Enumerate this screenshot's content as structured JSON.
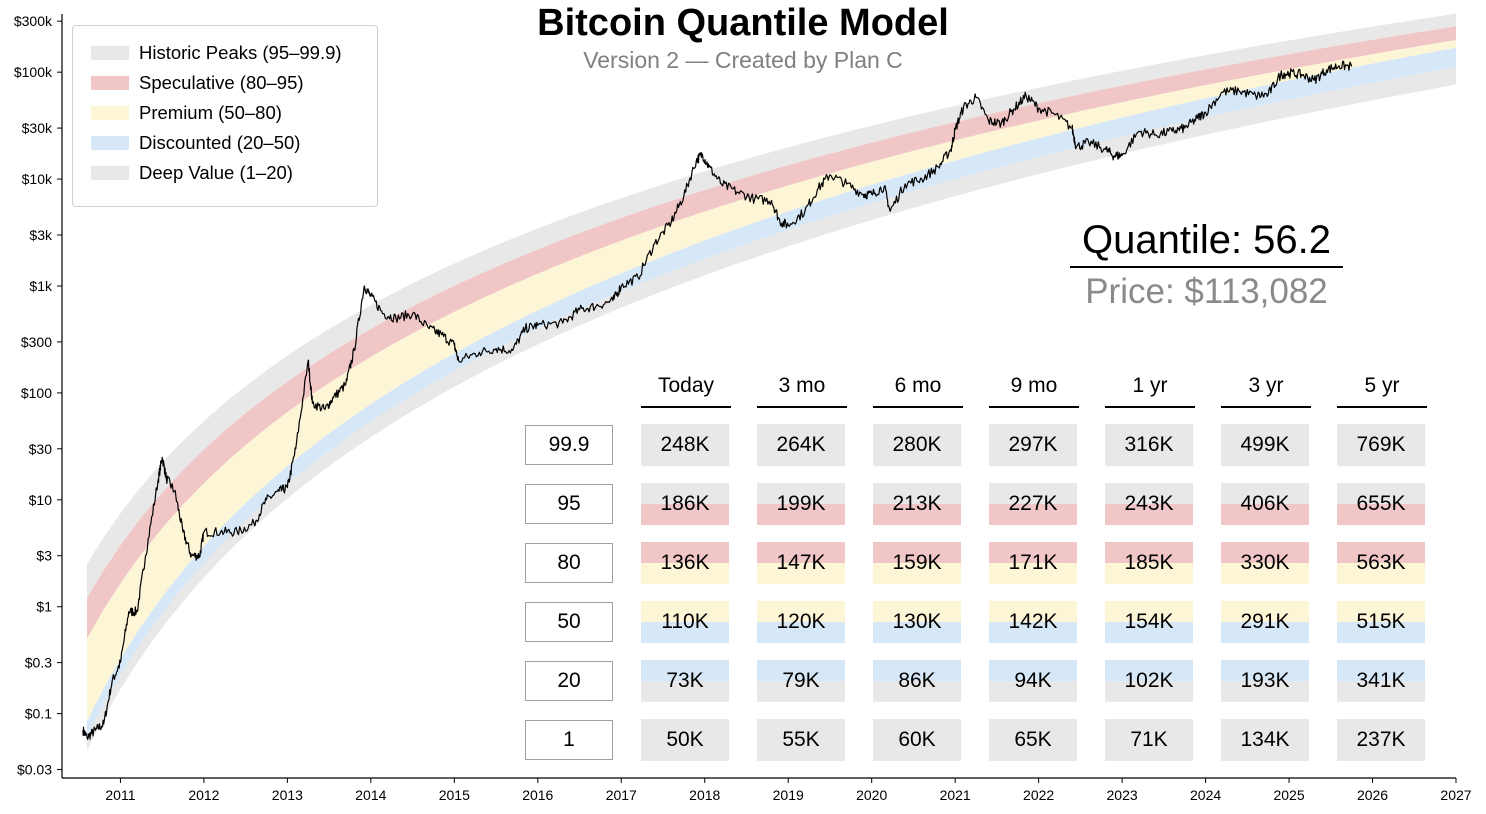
{
  "title": "Bitcoin Quantile Model",
  "subtitle": "Version 2 — Created by Plan C",
  "legend": [
    {
      "label": "Historic Peaks (95–99.9)",
      "color": "#e8e8e8"
    },
    {
      "label": "Speculative (80–95)",
      "color": "#f1c6c6"
    },
    {
      "label": "Premium (50–80)",
      "color": "#fdf6d6"
    },
    {
      "label": "Discounted (20–50)",
      "color": "#d6e7f7"
    },
    {
      "label": "Deep Value (1–20)",
      "color": "#e8e8e8"
    }
  ],
  "quantile_label": "Quantile: 56.2",
  "price_label": "Price: $113,082",
  "table": {
    "columns": [
      "Today",
      "3 mo",
      "6 mo",
      "9 mo",
      "1 yr",
      "3 yr",
      "5 yr"
    ],
    "rows": [
      {
        "quantile": "99.9",
        "values": [
          "248K",
          "264K",
          "280K",
          "297K",
          "316K",
          "499K",
          "769K"
        ]
      },
      {
        "quantile": "95",
        "values": [
          "186K",
          "199K",
          "213K",
          "227K",
          "243K",
          "406K",
          "655K"
        ]
      },
      {
        "quantile": "80",
        "values": [
          "136K",
          "147K",
          "159K",
          "171K",
          "185K",
          "330K",
          "563K"
        ]
      },
      {
        "quantile": "50",
        "values": [
          "110K",
          "120K",
          "130K",
          "142K",
          "154K",
          "291K",
          "515K"
        ]
      },
      {
        "quantile": "20",
        "values": [
          "73K",
          "79K",
          "86K",
          "94K",
          "102K",
          "193K",
          "341K"
        ]
      },
      {
        "quantile": "1",
        "values": [
          "50K",
          "55K",
          "60K",
          "65K",
          "71K",
          "134K",
          "237K"
        ]
      }
    ]
  },
  "colors": {
    "peaks": "#e8e8e8",
    "speculative": "#f1c6c6",
    "premium": "#fdf6d6",
    "discounted": "#d6e7f7",
    "deep": "#e8e8e8",
    "price_line": "#000000"
  },
  "chart_data": {
    "type": "line",
    "title": "Bitcoin Quantile Model",
    "subtitle": "Version 2 — Created by Plan C",
    "y_scale": "log",
    "y_ticks": [
      0.03,
      0.1,
      0.3,
      1,
      3,
      10,
      30,
      100,
      300,
      1000,
      3000,
      10000,
      30000,
      100000,
      300000
    ],
    "y_tick_labels": [
      "$0.03",
      "$0.1",
      "$0.3",
      "$1",
      "$3",
      "$10",
      "$30",
      "$100",
      "$300",
      "$1k",
      "$3k",
      "$10k",
      "$30k",
      "$100k",
      "$300k"
    ],
    "x_ticks": [
      2011,
      2012,
      2013,
      2014,
      2015,
      2016,
      2017,
      2018,
      2019,
      2020,
      2021,
      2022,
      2023,
      2024,
      2025,
      2026,
      2027
    ],
    "x_tick_labels": [
      "2011",
      "2012",
      "2013",
      "2014",
      "2015",
      "2016",
      "2017",
      "2018",
      "2019",
      "2020",
      "2021",
      "2022",
      "2023",
      "2024",
      "2025",
      "2026",
      "2027"
    ],
    "xlim": [
      2010.3,
      2027
    ],
    "ylim": [
      0.025,
      350000
    ],
    "band_start": 2010.6,
    "band_end": 2027,
    "bands": [
      {
        "name": "Historic Peaks (95–99.9)",
        "at": [
          {
            "x": 2010.6,
            "v": 2.5
          },
          {
            "x": 2025.75,
            "v": 248000
          }
        ]
      },
      {
        "name": "Quantile 95",
        "at": [
          {
            "x": 2010.6,
            "v": 1.2
          },
          {
            "x": 2025.75,
            "v": 186000
          }
        ]
      },
      {
        "name": "Quantile 80",
        "at": [
          {
            "x": 2010.6,
            "v": 0.5
          },
          {
            "x": 2025.75,
            "v": 136000
          }
        ]
      },
      {
        "name": "Quantile 50",
        "at": [
          {
            "x": 2010.6,
            "v": 0.085
          },
          {
            "x": 2025.75,
            "v": 110000
          }
        ]
      },
      {
        "name": "Quantile 20",
        "at": [
          {
            "x": 2010.6,
            "v": 0.06
          },
          {
            "x": 2025.75,
            "v": 73000
          }
        ]
      },
      {
        "name": "Quantile 1",
        "at": [
          {
            "x": 2010.6,
            "v": 0.045
          },
          {
            "x": 2025.75,
            "v": 50000
          }
        ]
      }
    ],
    "price_series": {
      "x": [
        2010.55,
        2010.6,
        2010.7,
        2010.8,
        2010.9,
        2011.0,
        2011.1,
        2011.2,
        2011.3,
        2011.45,
        2011.5,
        2011.55,
        2011.65,
        2011.75,
        2011.85,
        2011.95,
        2012.0,
        2012.2,
        2012.4,
        2012.6,
        2012.75,
        2012.9,
        2013.0,
        2013.1,
        2013.25,
        2013.3,
        2013.45,
        2013.55,
        2013.7,
        2013.8,
        2013.92,
        2014.0,
        2014.15,
        2014.3,
        2014.5,
        2014.7,
        2014.85,
        2015.0,
        2015.05,
        2015.3,
        2015.5,
        2015.7,
        2015.85,
        2016.0,
        2016.3,
        2016.5,
        2016.7,
        2016.9,
        2017.0,
        2017.2,
        2017.4,
        2017.6,
        2017.75,
        2017.9,
        2017.97,
        2018.05,
        2018.2,
        2018.4,
        2018.6,
        2018.8,
        2018.9,
        2019.0,
        2019.2,
        2019.35,
        2019.5,
        2019.7,
        2019.9,
        2020.0,
        2020.15,
        2020.22,
        2020.4,
        2020.6,
        2020.8,
        2020.95,
        2021.0,
        2021.1,
        2021.25,
        2021.4,
        2021.55,
        2021.7,
        2021.85,
        2022.0,
        2022.2,
        2022.4,
        2022.45,
        2022.6,
        2022.8,
        2022.9,
        2023.0,
        2023.2,
        2023.4,
        2023.6,
        2023.75,
        2023.9,
        2024.0,
        2024.2,
        2024.4,
        2024.6,
        2024.75,
        2024.9,
        2025.0,
        2025.15,
        2025.3,
        2025.45,
        2025.6,
        2025.75
      ],
      "y": [
        0.07,
        0.06,
        0.07,
        0.08,
        0.2,
        0.3,
        0.9,
        0.9,
        3,
        15,
        25,
        16,
        12,
        5,
        3,
        3,
        5,
        5,
        5,
        6,
        10,
        12,
        13,
        30,
        200,
        80,
        70,
        90,
        120,
        250,
        1000,
        800,
        550,
        500,
        550,
        400,
        350,
        280,
        200,
        240,
        260,
        250,
        400,
        430,
        450,
        600,
        650,
        730,
        1000,
        1200,
        2500,
        4000,
        7000,
        15000,
        17000,
        13000,
        9000,
        7500,
        6500,
        6300,
        4000,
        3700,
        5000,
        8000,
        11000,
        9000,
        7200,
        7200,
        8500,
        5000,
        9000,
        10000,
        13000,
        19000,
        29000,
        47000,
        58000,
        35000,
        33000,
        45000,
        60000,
        46000,
        40000,
        30000,
        20000,
        22000,
        19000,
        16500,
        16700,
        28000,
        26000,
        28000,
        30000,
        37000,
        42000,
        65000,
        67000,
        60000,
        62000,
        95000,
        98000,
        95000,
        84000,
        105000,
        115000,
        113082
      ]
    }
  }
}
